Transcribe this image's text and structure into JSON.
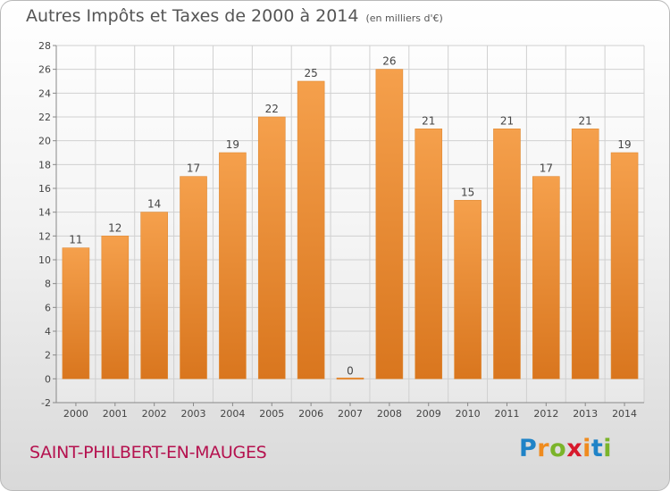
{
  "title": "Autres Impôts et Taxes de 2000 à 2014",
  "subtitle": "(en milliers d'€)",
  "place_name": "SAINT-PHILBERT-EN-MAUGES",
  "logo": {
    "letters": [
      "P",
      "r",
      "o",
      "x",
      "i",
      "t",
      "i"
    ],
    "colors": [
      "#1f83c7",
      "#ef8b1e",
      "#7bb42a",
      "#d7192c",
      "#ef8b1e",
      "#1f83c7",
      "#7bb42a"
    ]
  },
  "colors": {
    "bar": "#f5a04c",
    "bar_dark": "#d9761e",
    "grid": "#d0d0d0",
    "text": "#444444"
  },
  "chart_data": {
    "type": "bar",
    "categories": [
      "2000",
      "2001",
      "2002",
      "2003",
      "2004",
      "2005",
      "2006",
      "2007",
      "2008",
      "2009",
      "2010",
      "2011",
      "2012",
      "2013",
      "2014"
    ],
    "values": [
      11,
      12,
      14,
      17,
      19,
      22,
      25,
      0,
      26,
      21,
      15,
      21,
      17,
      21,
      19
    ],
    "data_labels": [
      "11",
      "12",
      "14",
      "17",
      "19",
      "22",
      "25",
      "0",
      "26",
      "21",
      "15",
      "21",
      "17",
      "21",
      "19"
    ],
    "yticks": [
      -2,
      0,
      2,
      4,
      6,
      8,
      10,
      12,
      14,
      16,
      18,
      20,
      22,
      24,
      26,
      28
    ],
    "ylim": [
      -2,
      28
    ],
    "grid": true,
    "title": "Autres Impôts et Taxes de 2000 à 2014",
    "xlabel": "",
    "ylabel": ""
  }
}
